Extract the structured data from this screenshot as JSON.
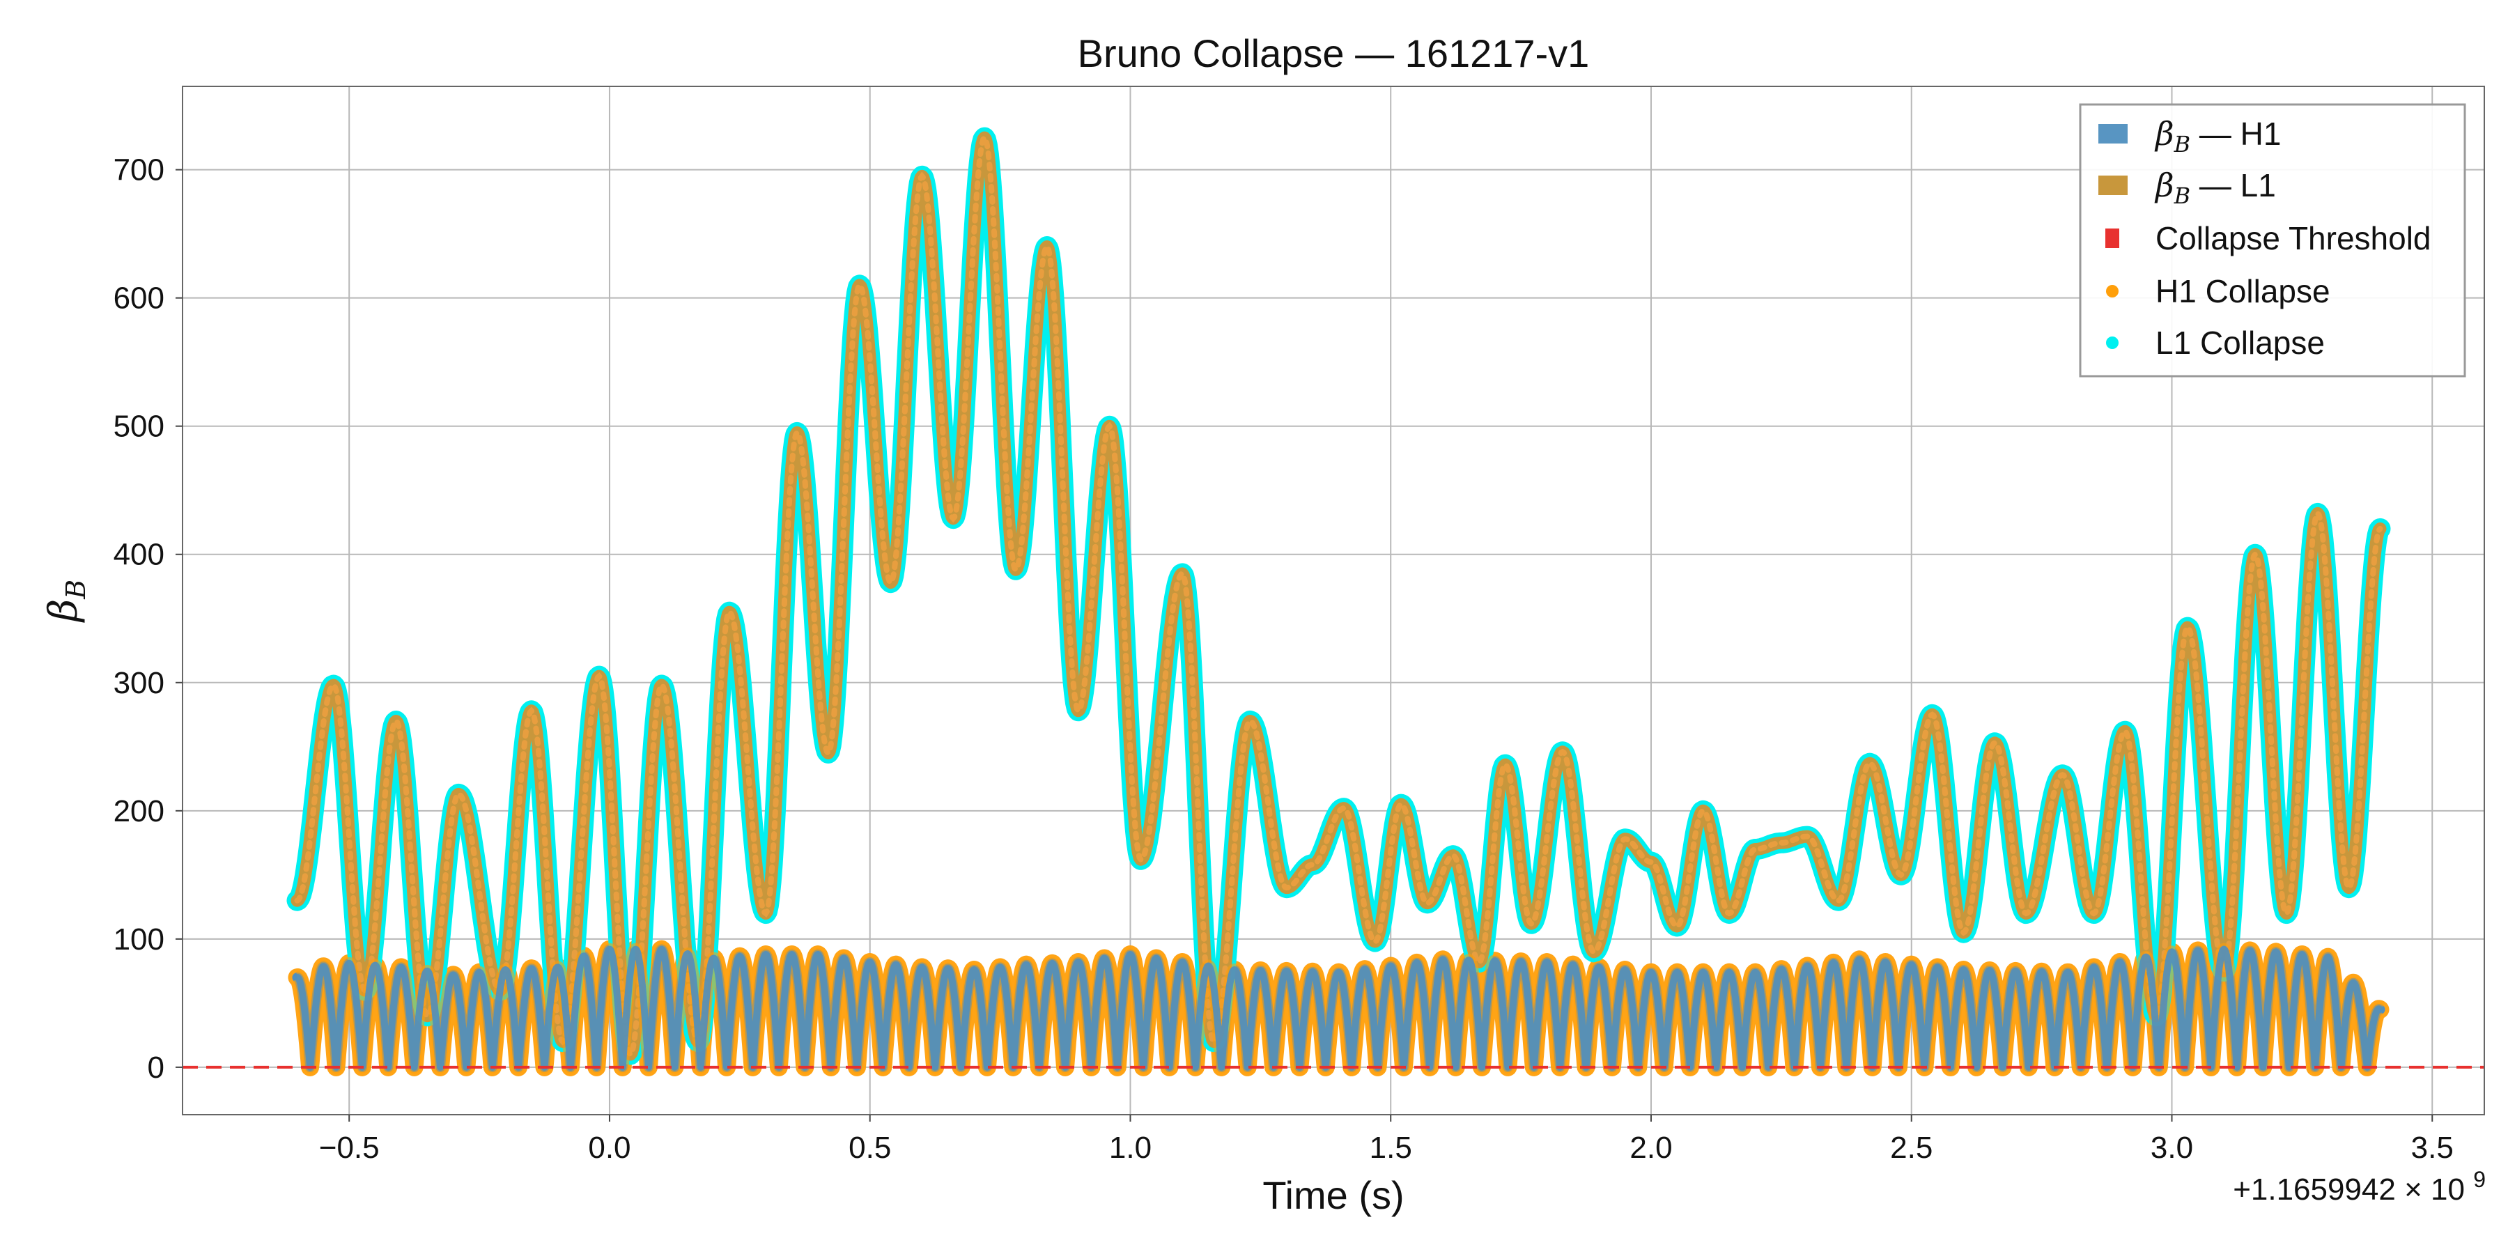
{
  "chart_data": {
    "type": "line",
    "title": "Bruno Collapse — 161217-v1",
    "xlabel": "Time (s)",
    "ylabel_symbol": "β",
    "ylabel_sub": "B",
    "x_offset_label": "+1.1659942 × 10",
    "x_offset_exponent": "9",
    "xlim": [
      -0.82,
      3.6
    ],
    "ylim": [
      -37,
      765
    ],
    "x_ticks": [
      -0.5,
      0.0,
      0.5,
      1.0,
      1.5,
      2.0,
      2.5,
      3.0,
      3.5
    ],
    "x_tick_labels": [
      "−0.5",
      "0.0",
      "0.5",
      "1.0",
      "1.5",
      "2.0",
      "2.5",
      "3.0",
      "3.5"
    ],
    "y_ticks": [
      0,
      100,
      200,
      300,
      400,
      500,
      600,
      700
    ],
    "y_tick_labels": [
      "0",
      "100",
      "200",
      "300",
      "400",
      "500",
      "600",
      "700"
    ],
    "grid": true,
    "legend_position": "top-right",
    "threshold": 0,
    "series": [
      {
        "name": "β_B — H1",
        "legend_symbol": "β",
        "legend_sub": "B",
        "legend_suffix": " — H1",
        "color": "#4f8fbf",
        "collapse_color": "#ff9f0a",
        "kind": "oscillation",
        "x": [
          -0.6,
          -0.53,
          -0.4,
          -0.3,
          -0.2,
          -0.1,
          -0.02,
          0.1,
          0.2,
          0.3,
          0.4,
          0.5,
          0.6,
          0.7,
          0.8,
          0.9,
          1.0,
          1.1,
          1.2,
          1.4,
          1.6,
          1.8,
          2.0,
          2.2,
          2.4,
          2.6,
          2.8,
          3.0,
          3.1,
          3.2,
          3.3,
          3.4
        ],
        "y": [
          70,
          82,
          78,
          72,
          76,
          78,
          92,
          92,
          85,
          88,
          88,
          82,
          78,
          76,
          80,
          82,
          88,
          82,
          76,
          74,
          84,
          82,
          74,
          74,
          84,
          76,
          74,
          90,
          92,
          90,
          86,
          45
        ],
        "period": 0.05
      },
      {
        "name": "β_B — L1",
        "legend_symbol": "β",
        "legend_sub": "B",
        "legend_suffix": " — L1",
        "color": "#c8973c",
        "collapse_color": "#00f0f0",
        "kind": "peaks",
        "x": [
          -0.6,
          -0.53,
          -0.47,
          -0.41,
          -0.35,
          -0.29,
          -0.21,
          -0.15,
          -0.09,
          -0.02,
          0.04,
          0.1,
          0.17,
          0.23,
          0.3,
          0.36,
          0.42,
          0.48,
          0.54,
          0.6,
          0.66,
          0.72,
          0.78,
          0.84,
          0.9,
          0.96,
          1.02,
          1.1,
          1.16,
          1.23,
          1.3,
          1.35,
          1.41,
          1.47,
          1.52,
          1.57,
          1.62,
          1.67,
          1.72,
          1.77,
          1.83,
          1.89,
          1.95,
          2.0,
          2.05,
          2.1,
          2.15,
          2.2,
          2.25,
          2.3,
          2.36,
          2.42,
          2.48,
          2.54,
          2.6,
          2.66,
          2.72,
          2.79,
          2.85,
          2.91,
          2.97,
          3.03,
          3.1,
          3.16,
          3.22,
          3.28,
          3.34,
          3.4
        ],
        "y": [
          130,
          298,
          60,
          270,
          40,
          213,
          60,
          278,
          20,
          305,
          10,
          298,
          20,
          355,
          120,
          495,
          245,
          610,
          378,
          695,
          428,
          725,
          388,
          640,
          278,
          500,
          162,
          385,
          20,
          270,
          140,
          158,
          202,
          98,
          205,
          128,
          165,
          82,
          236,
          112,
          246,
          90,
          178,
          160,
          110,
          200,
          120,
          170,
          175,
          180,
          130,
          237,
          150,
          275,
          105,
          253,
          120,
          228,
          120,
          262,
          40,
          343,
          75,
          400,
          120,
          432,
          140,
          420
        ]
      },
      {
        "name": "Collapse Threshold",
        "color": "#e8312f",
        "kind": "threshold",
        "value": 0
      },
      {
        "name": "H1 Collapse",
        "color": "#ff9f0a",
        "kind": "marker"
      },
      {
        "name": "L1 Collapse",
        "color": "#00f0f0",
        "kind": "marker"
      }
    ]
  }
}
